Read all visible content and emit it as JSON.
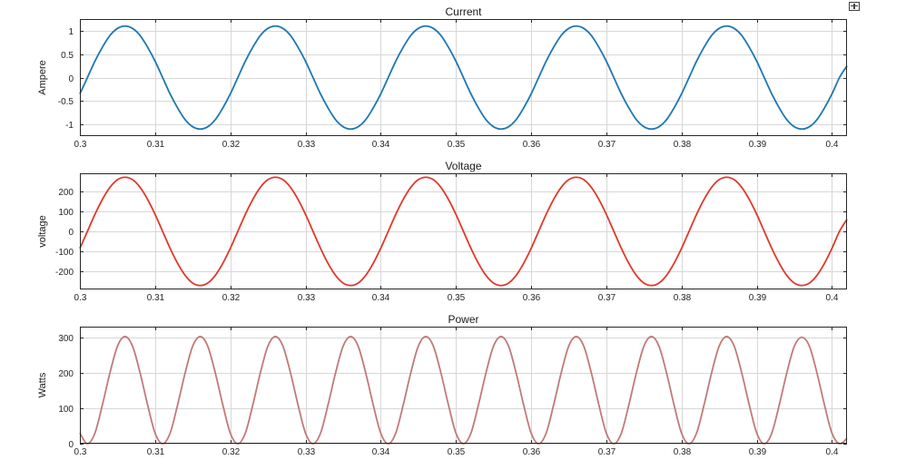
{
  "toolbar": {
    "icon": "dock-axes-icon"
  },
  "chart_data": [
    {
      "type": "line",
      "title": "Current",
      "xlabel": "",
      "ylabel": "Ampere",
      "xlim": [
        0.3,
        0.402
      ],
      "ylim": [
        -1.25,
        1.25
      ],
      "xticks": [
        0.3,
        0.31,
        0.32,
        0.33,
        0.34,
        0.35,
        0.36,
        0.37,
        0.38,
        0.39,
        0.4
      ],
      "yticks": [
        -1,
        -0.5,
        0,
        0.5,
        1
      ],
      "grid": true,
      "color": "#1f77b4",
      "series": [
        {
          "name": "",
          "x": [
            0.3,
            0.301,
            0.302,
            0.303,
            0.304,
            0.305,
            0.306,
            0.307,
            0.308,
            0.309,
            0.31,
            0.311,
            0.312,
            0.313,
            0.314,
            0.315,
            0.316,
            0.317,
            0.318,
            0.319,
            0.32,
            0.321,
            0.322,
            0.323,
            0.324,
            0.325,
            0.326,
            0.327,
            0.328,
            0.329,
            0.33,
            0.331,
            0.332,
            0.333,
            0.334,
            0.335,
            0.336,
            0.337,
            0.338,
            0.339,
            0.34,
            0.341,
            0.342,
            0.343,
            0.344,
            0.345,
            0.346,
            0.347,
            0.348,
            0.349,
            0.35,
            0.351,
            0.352,
            0.353,
            0.354,
            0.355,
            0.356,
            0.357,
            0.358,
            0.359,
            0.36,
            0.361,
            0.362,
            0.363,
            0.364,
            0.365,
            0.366,
            0.367,
            0.368,
            0.369,
            0.37,
            0.371,
            0.372,
            0.373,
            0.374,
            0.375,
            0.376,
            0.377,
            0.378,
            0.379,
            0.38,
            0.381,
            0.382,
            0.383,
            0.384,
            0.385,
            0.386,
            0.387,
            0.388,
            0.389,
            0.39,
            0.391,
            0.392,
            0.393,
            0.394,
            0.395,
            0.396,
            0.397,
            0.398,
            0.399,
            0.4,
            0.401,
            0.402
          ],
          "y": [
            -0.35,
            0,
            0.35,
            0.65,
            0.9,
            1.05,
            1.1,
            1.05,
            0.9,
            0.65,
            0.35,
            0,
            -0.35,
            -0.65,
            -0.9,
            -1.05,
            -1.1,
            -1.05,
            -0.9,
            -0.65,
            -0.35,
            0,
            0.35,
            0.65,
            0.9,
            1.05,
            1.1,
            1.05,
            0.9,
            0.65,
            0.35,
            0,
            -0.35,
            -0.65,
            -0.9,
            -1.05,
            -1.1,
            -1.05,
            -0.9,
            -0.65,
            -0.35,
            0,
            0.35,
            0.65,
            0.9,
            1.05,
            1.1,
            1.05,
            0.9,
            0.65,
            0.35,
            0,
            -0.35,
            -0.65,
            -0.9,
            -1.05,
            -1.1,
            -1.05,
            -0.9,
            -0.65,
            -0.35,
            0,
            0.35,
            0.65,
            0.9,
            1.05,
            1.1,
            1.05,
            0.9,
            0.65,
            0.35,
            0,
            -0.35,
            -0.65,
            -0.9,
            -1.05,
            -1.1,
            -1.05,
            -0.9,
            -0.65,
            -0.35,
            0,
            0.35,
            0.65,
            0.9,
            1.05,
            1.1,
            1.05,
            0.9,
            0.65,
            0.35,
            0,
            -0.35,
            -0.65,
            -0.9,
            -1.05,
            -1.1,
            -1.05,
            -0.9,
            -0.65,
            -0.35,
            0,
            0.25
          ]
        }
      ]
    },
    {
      "type": "line",
      "title": "Voltage",
      "xlabel": "",
      "ylabel": "voltage",
      "xlim": [
        0.3,
        0.402
      ],
      "ylim": [
        -290,
        290
      ],
      "xticks": [
        0.3,
        0.31,
        0.32,
        0.33,
        0.34,
        0.35,
        0.36,
        0.37,
        0.38,
        0.39,
        0.4
      ],
      "yticks": [
        -200,
        -100,
        0,
        100,
        200
      ],
      "grid": true,
      "color": "#e0392b",
      "series": [
        {
          "name": "",
          "x": [
            0.3,
            0.301,
            0.302,
            0.303,
            0.304,
            0.305,
            0.306,
            0.307,
            0.308,
            0.309,
            0.31,
            0.311,
            0.312,
            0.313,
            0.314,
            0.315,
            0.316,
            0.317,
            0.318,
            0.319,
            0.32,
            0.321,
            0.322,
            0.323,
            0.324,
            0.325,
            0.326,
            0.327,
            0.328,
            0.329,
            0.33,
            0.331,
            0.332,
            0.333,
            0.334,
            0.335,
            0.336,
            0.337,
            0.338,
            0.339,
            0.34,
            0.341,
            0.342,
            0.343,
            0.344,
            0.345,
            0.346,
            0.347,
            0.348,
            0.349,
            0.35,
            0.351,
            0.352,
            0.353,
            0.354,
            0.355,
            0.356,
            0.357,
            0.358,
            0.359,
            0.36,
            0.361,
            0.362,
            0.363,
            0.364,
            0.365,
            0.366,
            0.367,
            0.368,
            0.369,
            0.37,
            0.371,
            0.372,
            0.373,
            0.374,
            0.375,
            0.376,
            0.377,
            0.378,
            0.379,
            0.38,
            0.381,
            0.382,
            0.383,
            0.384,
            0.385,
            0.386,
            0.387,
            0.388,
            0.389,
            0.39,
            0.391,
            0.392,
            0.393,
            0.394,
            0.395,
            0.396,
            0.397,
            0.398,
            0.399,
            0.4,
            0.401,
            0.402
          ],
          "y": [
            -85,
            0,
            85,
            160,
            220,
            258,
            270,
            258,
            220,
            160,
            85,
            0,
            -85,
            -160,
            -220,
            -258,
            -270,
            -258,
            -220,
            -160,
            -85,
            0,
            85,
            160,
            220,
            258,
            270,
            258,
            220,
            160,
            85,
            0,
            -85,
            -160,
            -220,
            -258,
            -270,
            -258,
            -220,
            -160,
            -85,
            0,
            85,
            160,
            220,
            258,
            270,
            258,
            220,
            160,
            85,
            0,
            -85,
            -160,
            -220,
            -258,
            -270,
            -258,
            -220,
            -160,
            -85,
            0,
            85,
            160,
            220,
            258,
            270,
            258,
            220,
            160,
            85,
            0,
            -85,
            -160,
            -220,
            -258,
            -270,
            -258,
            -220,
            -160,
            -85,
            0,
            85,
            160,
            220,
            258,
            270,
            258,
            220,
            160,
            85,
            0,
            -85,
            -160,
            -220,
            -258,
            -270,
            -258,
            -220,
            -160,
            -85,
            0,
            60
          ]
        }
      ]
    },
    {
      "type": "line",
      "title": "Power",
      "xlabel": "",
      "ylabel": "Watts",
      "xlim": [
        0.3,
        0.402
      ],
      "ylim": [
        0,
        330
      ],
      "xticks": [
        0.3,
        0.31,
        0.32,
        0.33,
        0.34,
        0.35,
        0.36,
        0.37,
        0.38,
        0.39,
        0.4
      ],
      "yticks": [
        0,
        100,
        200,
        300
      ],
      "grid": true,
      "color": "#c07a7a",
      "series": [
        {
          "name": "",
          "x": [
            0.3,
            0.301,
            0.302,
            0.303,
            0.304,
            0.305,
            0.306,
            0.307,
            0.308,
            0.309,
            0.31,
            0.311,
            0.312,
            0.313,
            0.314,
            0.315,
            0.316,
            0.317,
            0.318,
            0.319,
            0.32,
            0.321,
            0.322,
            0.323,
            0.324,
            0.325,
            0.326,
            0.327,
            0.328,
            0.329,
            0.33,
            0.331,
            0.332,
            0.333,
            0.334,
            0.335,
            0.336,
            0.337,
            0.338,
            0.339,
            0.34,
            0.341,
            0.342,
            0.343,
            0.344,
            0.345,
            0.346,
            0.347,
            0.348,
            0.349,
            0.35,
            0.351,
            0.352,
            0.353,
            0.354,
            0.355,
            0.356,
            0.357,
            0.358,
            0.359,
            0.36,
            0.361,
            0.362,
            0.363,
            0.364,
            0.365,
            0.366,
            0.367,
            0.368,
            0.369,
            0.37,
            0.371,
            0.372,
            0.373,
            0.374,
            0.375,
            0.376,
            0.377,
            0.378,
            0.379,
            0.38,
            0.381,
            0.382,
            0.383,
            0.384,
            0.385,
            0.386,
            0.387,
            0.388,
            0.389,
            0.39,
            0.391,
            0.392,
            0.393,
            0.394,
            0.395,
            0.396,
            0.397,
            0.398,
            0.399,
            0.4,
            0.401,
            0.402
          ],
          "y": [
            30,
            0,
            30,
            110,
            200,
            275,
            302,
            275,
            200,
            110,
            30,
            0,
            30,
            110,
            200,
            275,
            302,
            275,
            200,
            110,
            30,
            0,
            30,
            110,
            200,
            275,
            302,
            275,
            200,
            110,
            30,
            0,
            30,
            110,
            200,
            275,
            302,
            275,
            200,
            110,
            30,
            0,
            30,
            110,
            200,
            275,
            302,
            275,
            200,
            110,
            30,
            0,
            30,
            110,
            200,
            275,
            302,
            275,
            200,
            110,
            30,
            0,
            30,
            110,
            200,
            275,
            302,
            275,
            200,
            110,
            30,
            0,
            30,
            110,
            200,
            275,
            302,
            275,
            200,
            110,
            30,
            0,
            30,
            110,
            200,
            275,
            302,
            275,
            200,
            110,
            30,
            0,
            30,
            110,
            200,
            275,
            300,
            275,
            200,
            110,
            30,
            0,
            15
          ]
        }
      ]
    }
  ]
}
